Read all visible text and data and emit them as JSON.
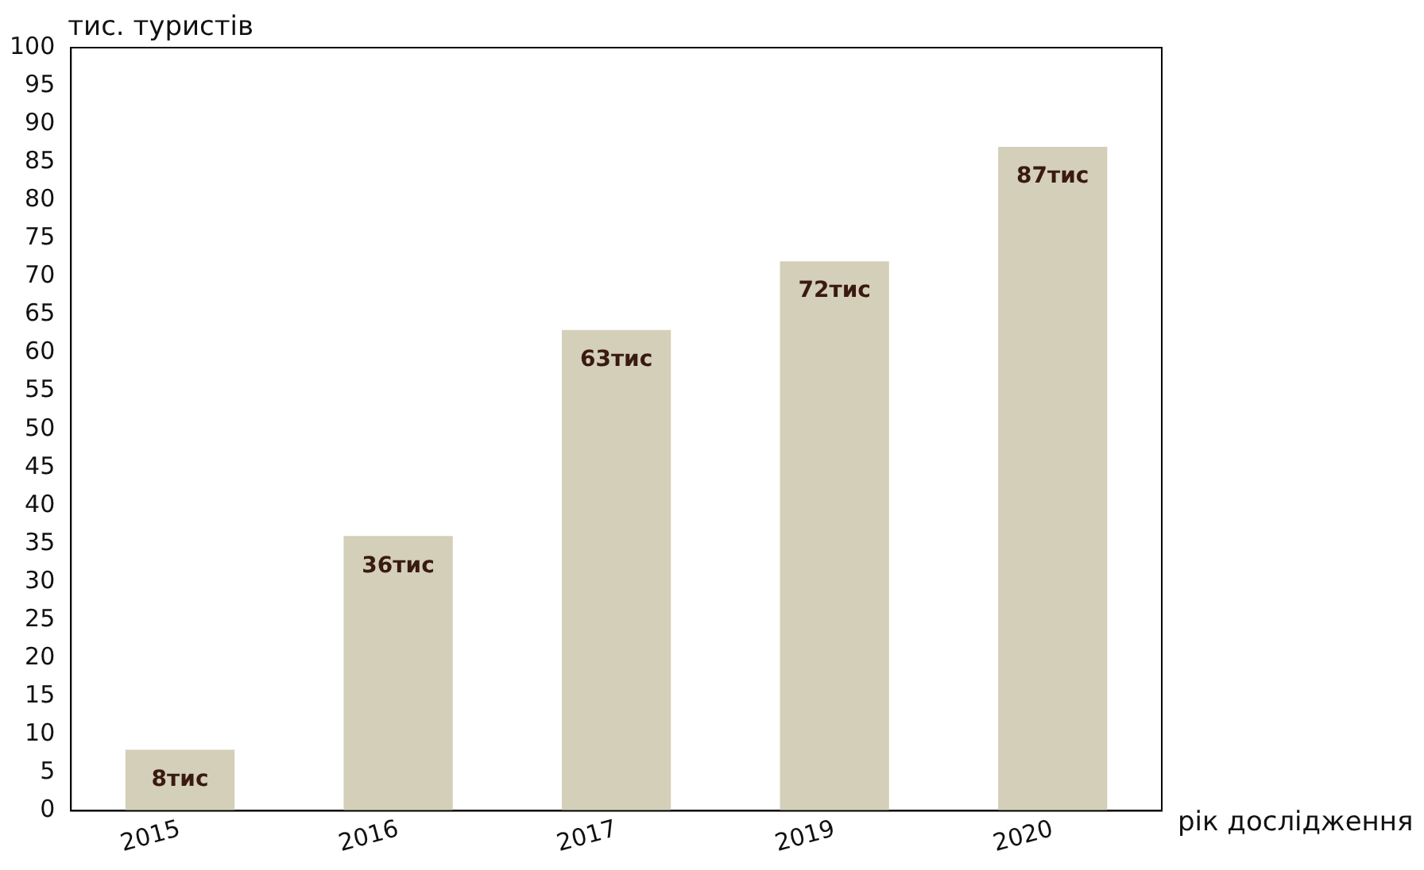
{
  "chart_data": {
    "type": "bar",
    "xlabel": "рік дослідження",
    "ylabel": "тис. туристів",
    "categories": [
      "2015",
      "2016",
      "2017",
      "2019",
      "2020"
    ],
    "values": [
      8,
      36,
      63,
      72,
      87
    ],
    "value_labels": [
      "8тис",
      "36тис",
      "63тис",
      "72тис",
      "87тис"
    ],
    "color": "#d3cfb8",
    "ylim": [
      0,
      100
    ],
    "yticks": [
      0,
      5,
      10,
      15,
      20,
      25,
      30,
      35,
      40,
      45,
      50,
      55,
      60,
      65,
      70,
      75,
      80,
      85,
      90,
      95,
      100
    ],
    "grid": false,
    "legend": false
  }
}
